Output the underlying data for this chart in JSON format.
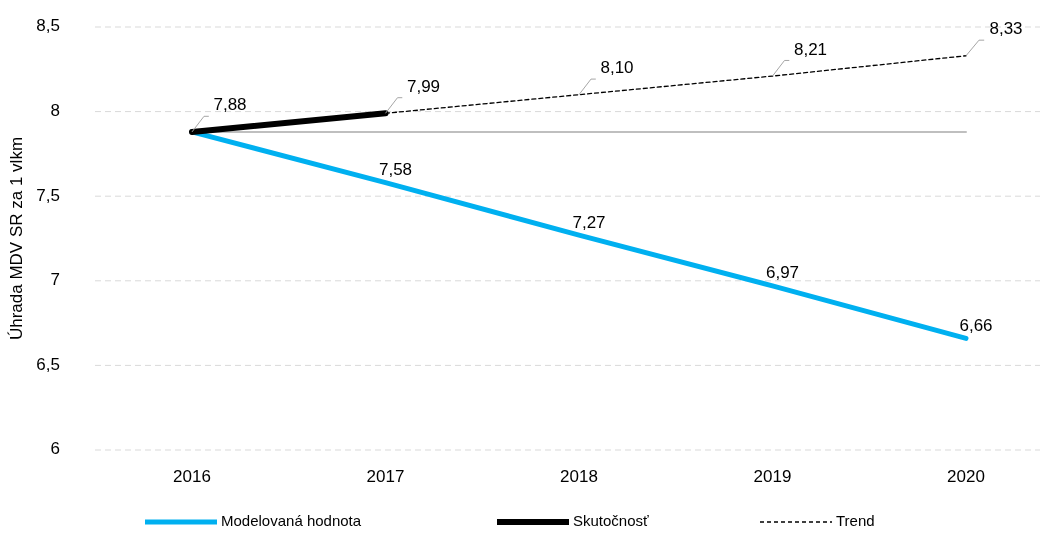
{
  "chart_data": {
    "type": "line",
    "ylabel": "Úhrada MDV SR za 1 vlkm",
    "categories": [
      "2016",
      "2017",
      "2018",
      "2019",
      "2020"
    ],
    "ylim": [
      6,
      8.5
    ],
    "yticks": [
      6,
      {
        "value": 6.5,
        "label": "6,5"
      },
      7,
      {
        "value": 7.5,
        "label": "7,5"
      },
      8,
      {
        "value": 8.5,
        "label": "8,5"
      }
    ],
    "grid": "y",
    "legend": "bottom",
    "marker": "none",
    "series": [
      {
        "color": "#bfbfbf",
        "values": [
          7.88,
          7.88,
          7.88,
          7.88,
          7.88
        ],
        "line_style": "solid"
      },
      {
        "name": "Modelovaná hodnota",
        "color": "#00b0f0",
        "values": [
          7.88,
          7.58,
          7.27,
          6.97,
          6.66
        ],
        "value_labels": [
          null,
          "7,58",
          "7,27",
          "6,97",
          "6,66"
        ],
        "line_style": "solid"
      },
      {
        "name": "Skutočnosť",
        "color": "#000000",
        "values": [
          7.88,
          7.99,
          null,
          null,
          null
        ],
        "value_labels": [
          "7,88",
          "7,99",
          null,
          null,
          null
        ],
        "line_style": "solid"
      },
      {
        "name": "Trend",
        "color": "#000000",
        "values": [
          null,
          7.99,
          8.1,
          8.21,
          8.33
        ],
        "value_labels": [
          null,
          null,
          "8,10",
          "8,21",
          "8,33"
        ],
        "line_style": "dashed"
      }
    ]
  }
}
